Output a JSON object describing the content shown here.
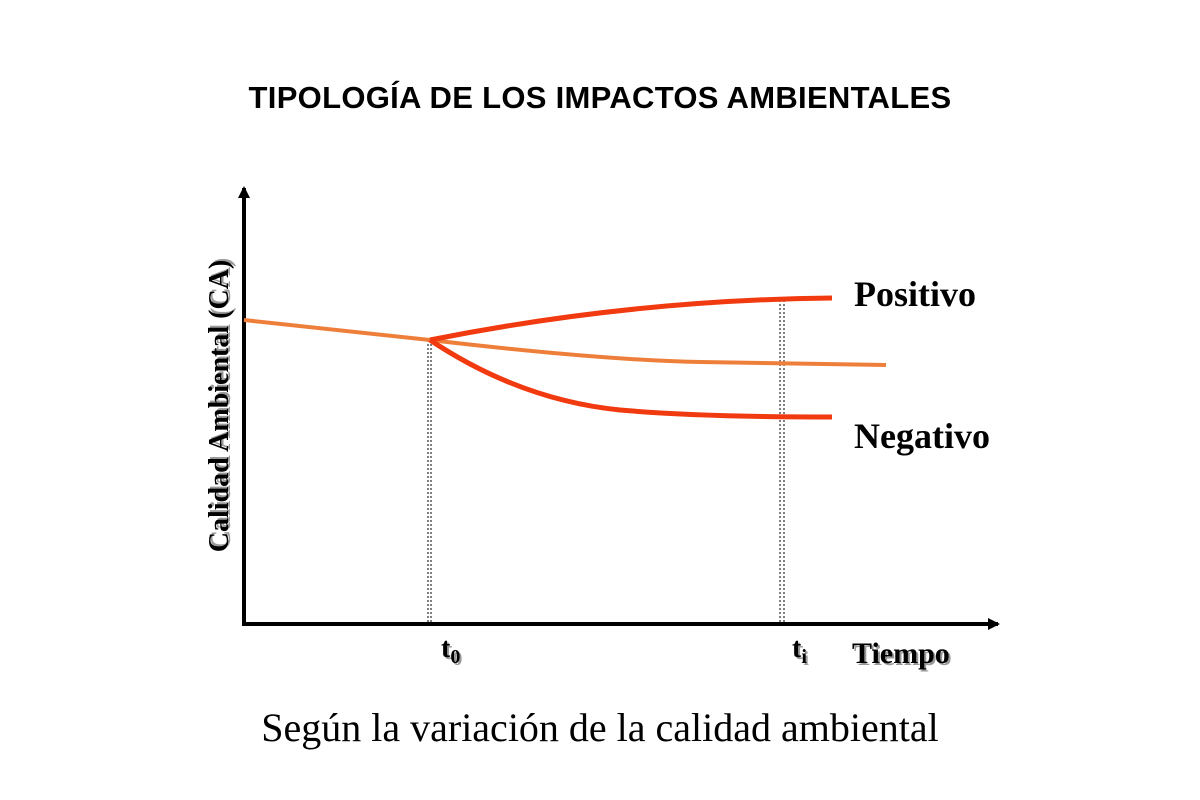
{
  "title": "TIPOLOGÍA DE LOS IMPACTOS AMBIENTALES",
  "subtitle": "Según la variación de la calidad ambiental",
  "diagram": {
    "y_axis_label": "Calidad Ambiental (CA)",
    "x_axis_label": "Tiempo",
    "t0_label": "t",
    "t0_sub": "0",
    "ti_label": "t",
    "ti_sub": "i",
    "positive_label": "Positivo",
    "negative_label": "Negativo"
  },
  "colors": {
    "baseline": "#EE7F3B",
    "impact": "#F23A10",
    "axis": "#000000",
    "shadow": "#9a9a9a"
  }
}
